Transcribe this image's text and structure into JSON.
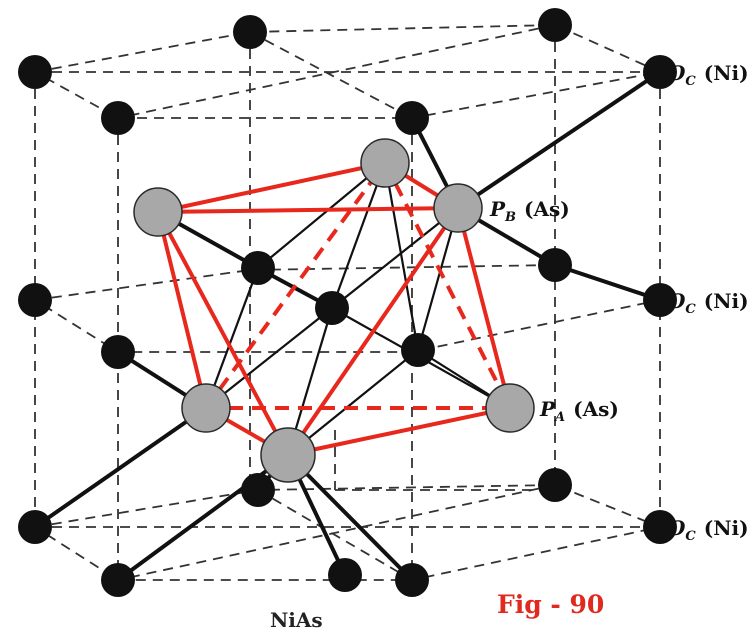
{
  "diagram": {
    "caption": "NiAs",
    "figure_label": "Fig - 90",
    "labels": {
      "oc_top": {
        "symbol": "O",
        "subscript": "C",
        "species": "(Ni)"
      },
      "oc_mid": {
        "symbol": "O",
        "subscript": "C",
        "species": "(Ni)"
      },
      "oc_bottom": {
        "symbol": "O",
        "subscript": "C",
        "species": "(Ni)"
      },
      "pb": {
        "symbol": "P",
        "subscript": "B",
        "species": "(As)"
      },
      "pa": {
        "symbol": "P",
        "subscript": "A",
        "species": "(As)"
      }
    },
    "colors": {
      "ni_atom": "#111111",
      "as_atom": "#a8a8a8",
      "octahedron": "#e8281c",
      "bond": "#111111",
      "cell_edge": "#333333"
    }
  }
}
